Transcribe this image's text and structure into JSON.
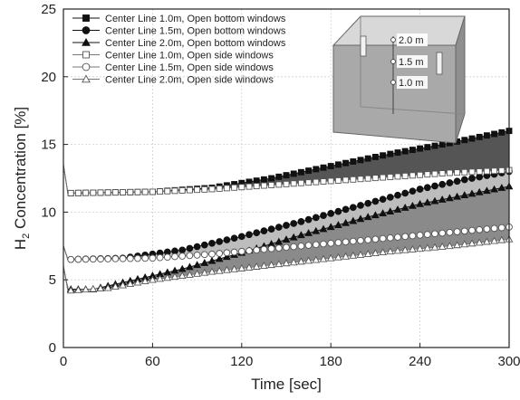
{
  "chart_data": {
    "type": "line",
    "title": "",
    "xlabel": "Time [sec]",
    "ylabel_main": "H",
    "ylabel_sub": "2",
    "ylabel_rest": " Concentration [%]",
    "xlim": [
      0,
      300
    ],
    "ylim": [
      0,
      25
    ],
    "xticks": [
      0,
      60,
      120,
      180,
      240,
      300
    ],
    "yticks": [
      0,
      5,
      10,
      15,
      20,
      25
    ],
    "grid": true,
    "legend_position": "top-left",
    "marker_interval_sec": 5,
    "series": [
      {
        "name": "Center Line 1.0m, Open bottom windows",
        "marker": "square",
        "filled": true,
        "points": [
          [
            0,
            13.5
          ],
          [
            3,
            11.4
          ],
          [
            60,
            11.5
          ],
          [
            100,
            11.8
          ],
          [
            140,
            12.5
          ],
          [
            180,
            13.4
          ],
          [
            220,
            14.3
          ],
          [
            260,
            15.1
          ],
          [
            300,
            16.0
          ]
        ]
      },
      {
        "name": "Center Line 1.5m, Open bottom windows",
        "marker": "circle",
        "filled": true,
        "points": [
          [
            0,
            7.5
          ],
          [
            3,
            6.5
          ],
          [
            40,
            6.6
          ],
          [
            80,
            7.2
          ],
          [
            120,
            8.2
          ],
          [
            160,
            9.3
          ],
          [
            200,
            10.5
          ],
          [
            240,
            11.7
          ],
          [
            270,
            12.4
          ],
          [
            300,
            13.0
          ]
        ]
      },
      {
        "name": "Center Line 2.0m, Open bottom windows",
        "marker": "triangle",
        "filled": true,
        "points": [
          [
            0,
            6.0
          ],
          [
            3,
            4.3
          ],
          [
            20,
            4.3
          ],
          [
            40,
            4.8
          ],
          [
            80,
            5.8
          ],
          [
            120,
            7.0
          ],
          [
            160,
            8.3
          ],
          [
            200,
            9.5
          ],
          [
            240,
            10.6
          ],
          [
            300,
            11.9
          ]
        ]
      },
      {
        "name": "Center Line 1.0m, Open side windows",
        "marker": "square",
        "filled": false,
        "points": [
          [
            0,
            13.5
          ],
          [
            3,
            11.4
          ],
          [
            60,
            11.5
          ],
          [
            100,
            11.7
          ],
          [
            140,
            12.0
          ],
          [
            180,
            12.3
          ],
          [
            220,
            12.6
          ],
          [
            260,
            12.9
          ],
          [
            300,
            13.1
          ]
        ]
      },
      {
        "name": "Center Line 1.5m, Open side windows",
        "marker": "circle",
        "filled": false,
        "points": [
          [
            0,
            7.5
          ],
          [
            3,
            6.5
          ],
          [
            60,
            6.6
          ],
          [
            100,
            6.9
          ],
          [
            140,
            7.3
          ],
          [
            180,
            7.7
          ],
          [
            220,
            8.1
          ],
          [
            260,
            8.5
          ],
          [
            300,
            8.9
          ]
        ]
      },
      {
        "name": "Center Line 2.0m, Open side windows",
        "marker": "triangle",
        "filled": false,
        "points": [
          [
            0,
            6.0
          ],
          [
            3,
            4.2
          ],
          [
            30,
            4.4
          ],
          [
            60,
            5.0
          ],
          [
            100,
            5.6
          ],
          [
            140,
            6.1
          ],
          [
            180,
            6.6
          ],
          [
            220,
            7.1
          ],
          [
            260,
            7.5
          ],
          [
            300,
            8.0
          ]
        ]
      }
    ],
    "shaded_bands": [
      {
        "upper_series": 0,
        "lower_series": 3,
        "color": "#555555"
      },
      {
        "upper_series": 1,
        "lower_series": 4,
        "color": "#bdbdbd"
      },
      {
        "upper_series": 2,
        "lower_series": 5,
        "color": "#8a8a8a"
      }
    ]
  },
  "inset": {
    "labels": [
      "2.0 m",
      "1.5 m",
      "1.0 m"
    ]
  }
}
